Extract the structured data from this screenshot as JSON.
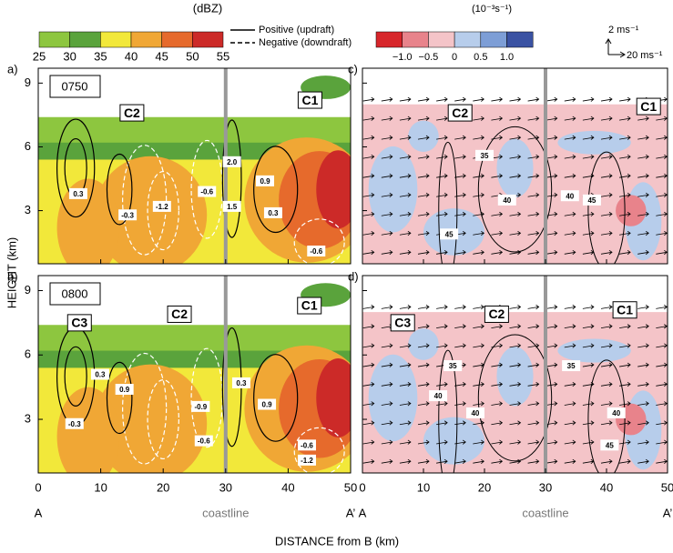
{
  "reflectivity_colorbar": {
    "unit": "(dBZ)",
    "ticks": [
      25,
      30,
      35,
      40,
      45,
      50,
      55
    ],
    "colors": [
      "#8dc63f",
      "#5aa33c",
      "#f2e83a",
      "#f0a735",
      "#e66a2c",
      "#cc2a28"
    ]
  },
  "contour_legend": {
    "positive": "Positive (updraft)",
    "negative": "Negative (downdraft)"
  },
  "divergence_colorbar": {
    "unit": "(10⁻³s⁻¹)",
    "ticks": [
      "−1.0",
      "−0.5",
      "0",
      "0.5",
      "1.0"
    ],
    "colors": [
      "#d7262b",
      "#e8838b",
      "#f4c4c8",
      "#b7cdeb",
      "#7d9ed6",
      "#3a52a3"
    ]
  },
  "vector_scale": {
    "vertical": "2 ms⁻¹",
    "horizontal": "20 ms⁻¹"
  },
  "y_axis": {
    "label": "HEIGHT (km)",
    "ticks": [
      3,
      6,
      9
    ]
  },
  "x_axis": {
    "label": "DISTANCE from B (km)",
    "ticks": [
      0,
      10,
      20,
      30,
      40,
      50
    ],
    "start": "A",
    "end": "A’",
    "coastline": "coastline"
  },
  "panels": [
    {
      "label": "a)",
      "time": "0750",
      "cells": [
        "C2",
        "C1"
      ],
      "contour_labels": [
        "0.3",
        "-0.3",
        "-1.2",
        "-0.6",
        "2.0",
        "0.9",
        "1.5",
        "0.3",
        "-0.6"
      ]
    },
    {
      "label": "b)",
      "time": "0800",
      "cells": [
        "C3",
        "C2",
        "C1"
      ],
      "contour_labels": [
        "0.3",
        "0.9",
        "-0.3",
        "-0.9",
        "-0.6",
        "0.3",
        "0.9",
        "-0.6",
        "-1.2"
      ]
    },
    {
      "label": "c)",
      "cells": [
        "C2",
        "C1"
      ],
      "contour_labels": [
        "35",
        "40",
        "45",
        "40",
        "45"
      ]
    },
    {
      "label": "d)",
      "cells": [
        "C3",
        "C2",
        "C1"
      ],
      "contour_labels": [
        "35",
        "40",
        "40",
        "35",
        "40",
        "45"
      ]
    }
  ]
}
